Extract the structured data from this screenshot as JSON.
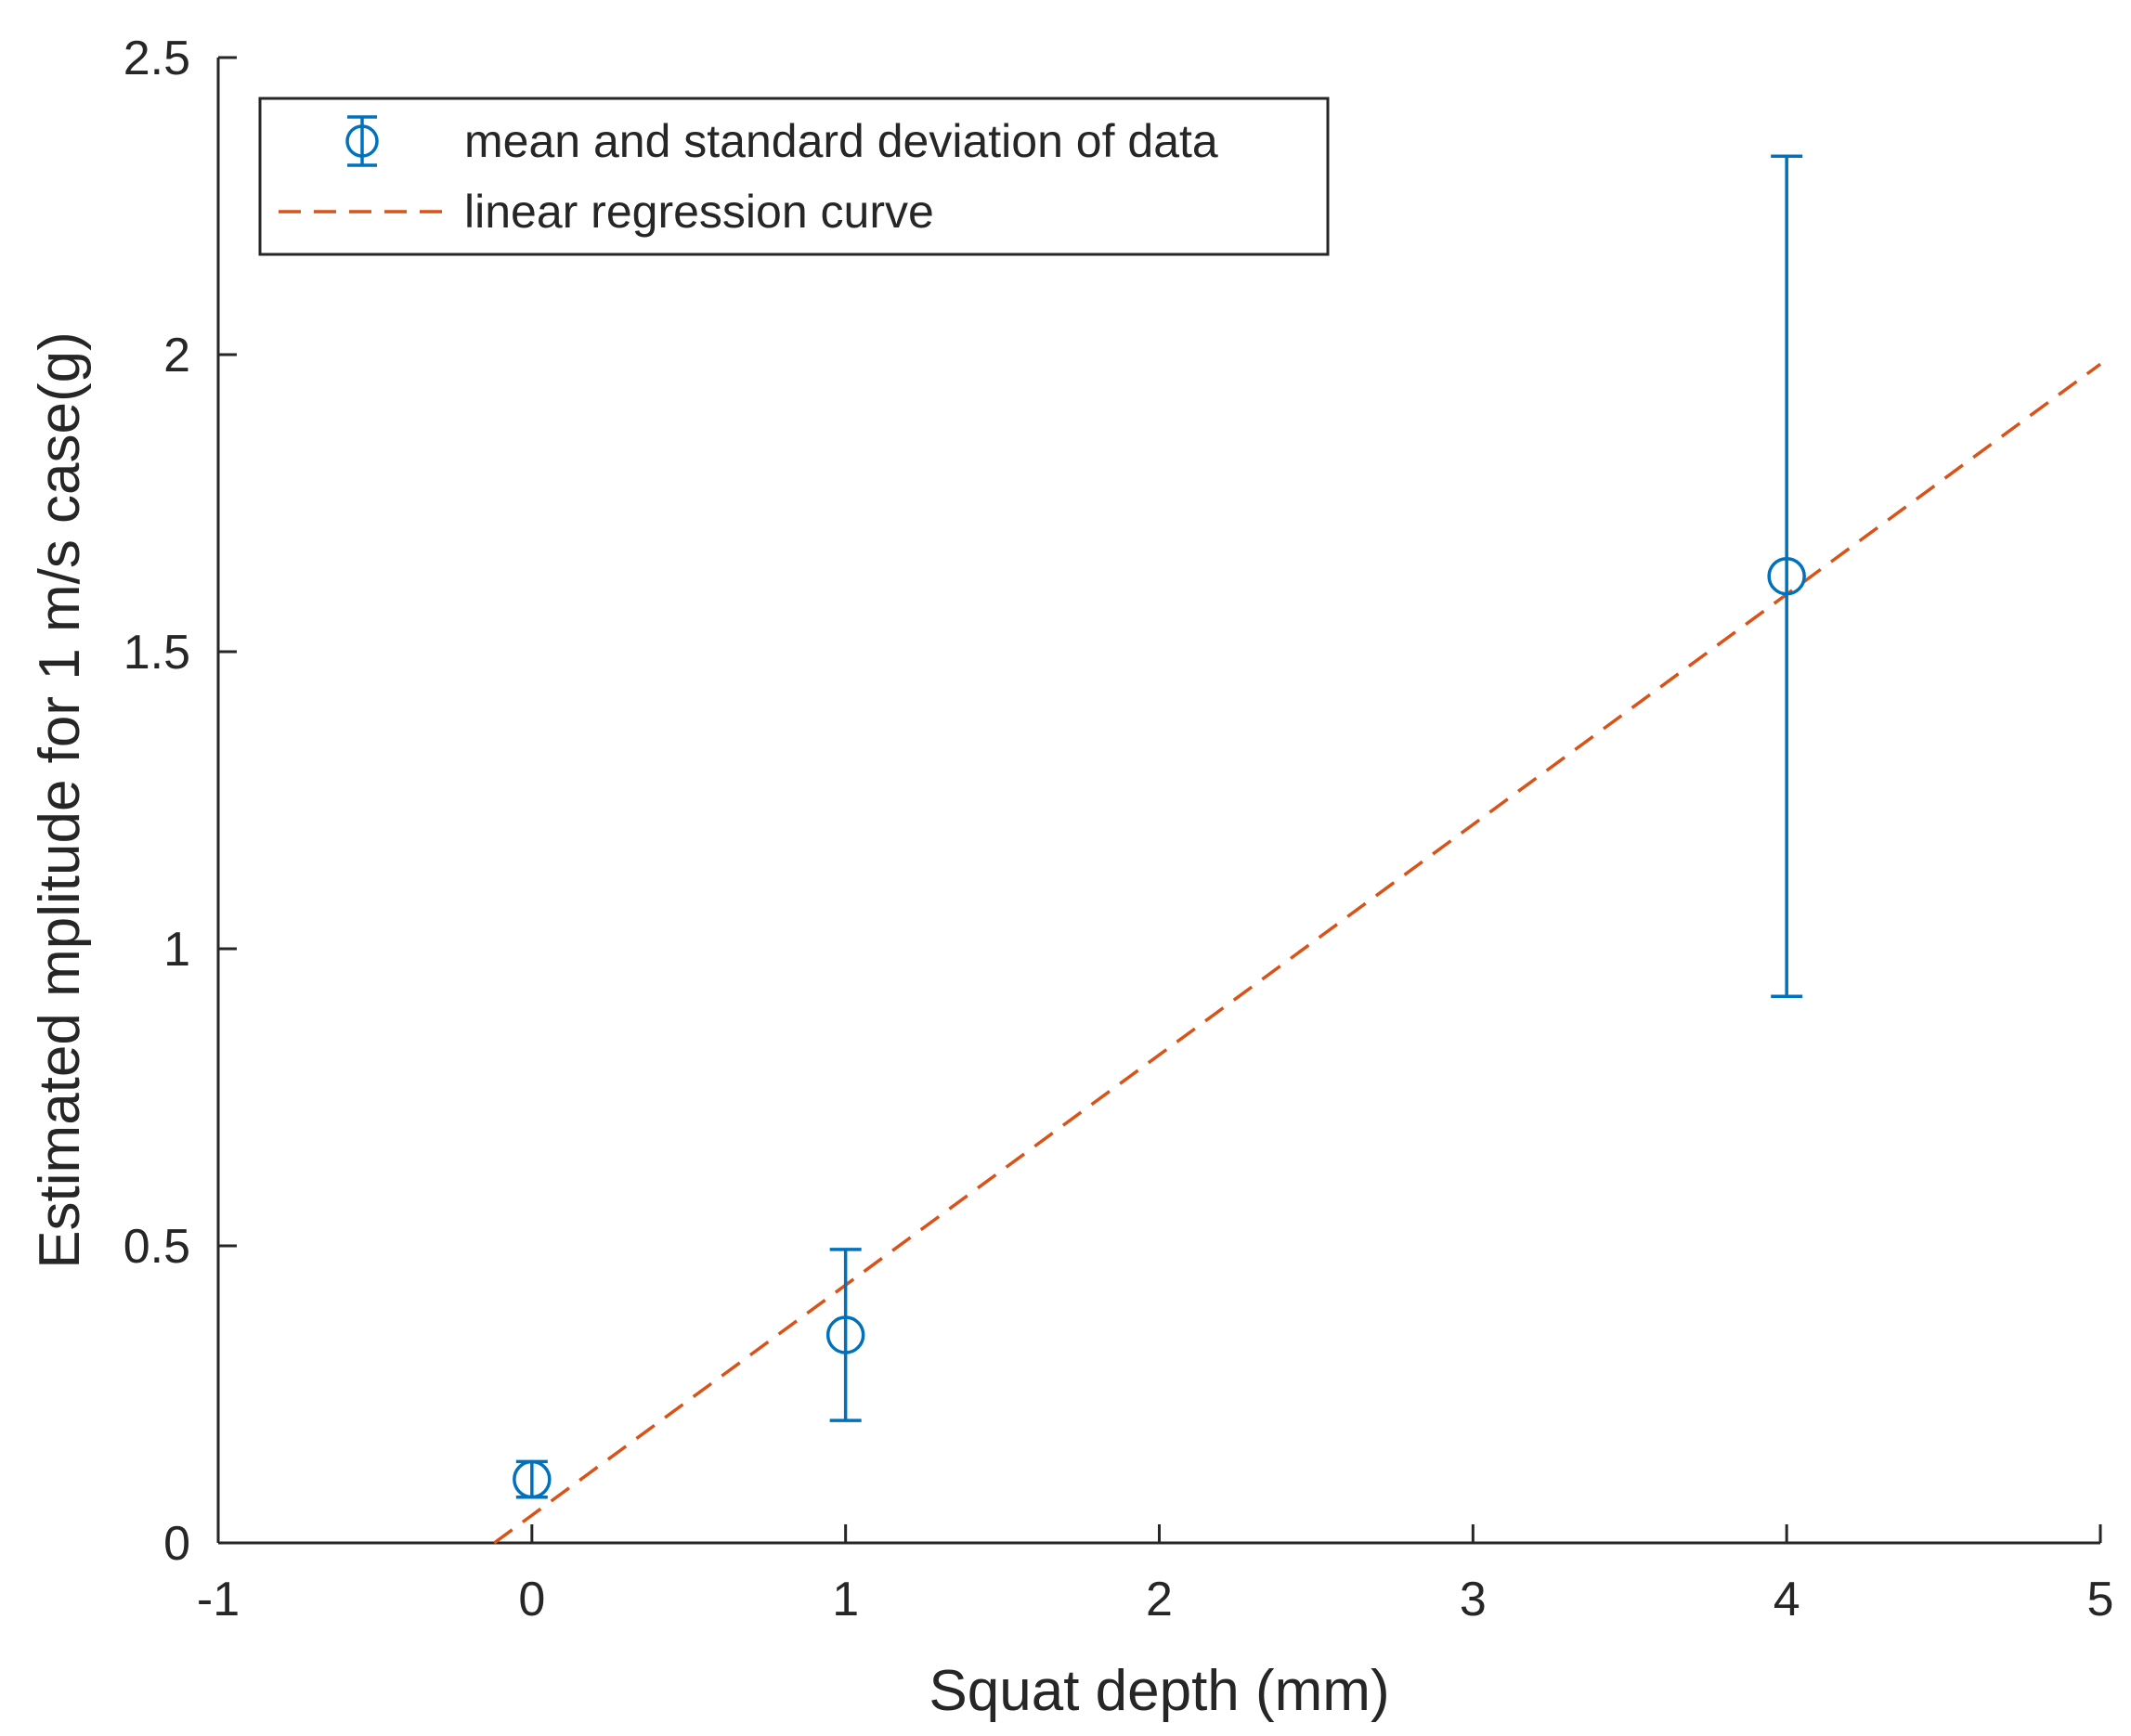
{
  "chart_data": {
    "type": "scatter",
    "title": "",
    "xlabel": "Squat depth (mm)",
    "ylabel": "Estimated mplitude for 1 m/s case(g)",
    "xlim": [
      -1,
      5
    ],
    "ylim": [
      0,
      2.5
    ],
    "x_ticks": [
      -1,
      0,
      1,
      2,
      3,
      4,
      5
    ],
    "y_ticks": [
      0,
      0.5,
      1,
      1.5,
      2,
      2.5
    ],
    "x_tick_labels": [
      "-1",
      "0",
      "1",
      "2",
      "3",
      "4",
      "5"
    ],
    "y_tick_labels": [
      "0",
      "0.5",
      "1",
      "1.5",
      "2",
      "2.5"
    ],
    "grid": false,
    "legend_position": "top-left",
    "series": [
      {
        "name": "mean and standard deviation of data",
        "kind": "errorbar",
        "marker": "circle",
        "color": "#0072BD",
        "points": [
          {
            "x": 0,
            "y": 0.107,
            "lower": 0.077,
            "upper": 0.137
          },
          {
            "x": 1,
            "y": 0.35,
            "lower": 0.206,
            "upper": 0.494
          },
          {
            "x": 4,
            "y": 1.627,
            "lower": 0.92,
            "upper": 2.334
          }
        ]
      },
      {
        "name": "linear regression curve",
        "kind": "line",
        "style": "dashed",
        "color": "#D95319",
        "x": [
          -0.12,
          5
        ],
        "y": [
          0,
          1.984
        ]
      }
    ]
  }
}
